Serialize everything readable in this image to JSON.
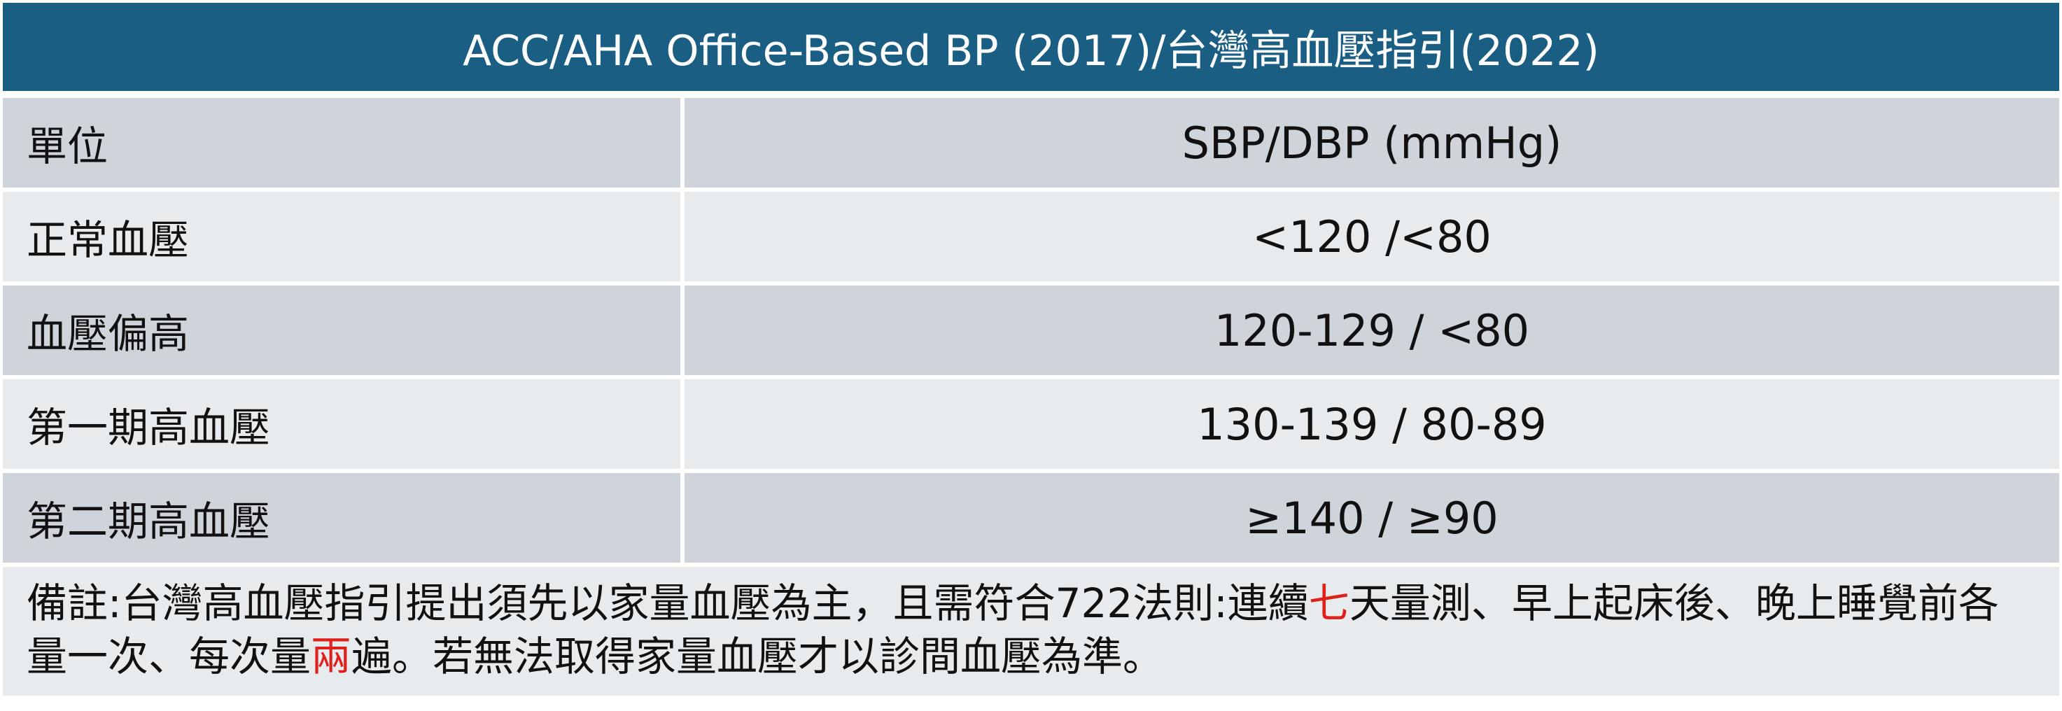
{
  "title": "ACC/AHA Office-Based BP (2017)/台灣高血壓指引(2022)",
  "rows": [
    {
      "label": "單位",
      "value": "SBP/DBP (mmHg)"
    },
    {
      "label": "正常血壓",
      "value": "<120 /<80"
    },
    {
      "label": "血壓偏高",
      "value": "120-129 / <80"
    },
    {
      "label": "第一期高血壓",
      "value": "130-139 / 80-89"
    },
    {
      "label": "第二期高血壓",
      "value": "≥140 / ≥90"
    }
  ],
  "note": {
    "part1": "備註:台灣高血壓指引提出須先以家量血壓為主，且需符合722法則:連續",
    "highlight1": "七",
    "part2": "天量測、早上起床後、晚上睡覺前各量一次、每次量",
    "highlight2": "兩",
    "part3": "遍。若無法取得家量血壓才以診間血壓為準。"
  },
  "colors": {
    "title_bg": "#1a5e83",
    "row_dark": "#cfd4db",
    "row_light": "#e8ebee",
    "highlight": "#e0201b"
  }
}
